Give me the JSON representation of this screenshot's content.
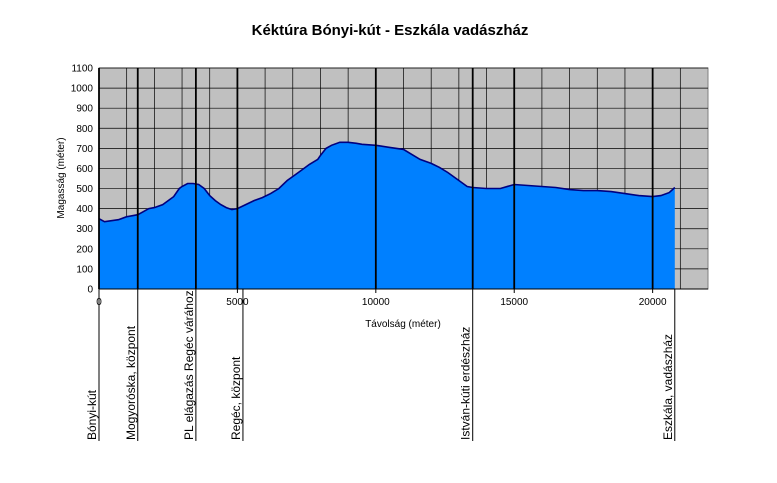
{
  "chart_data": {
    "type": "area",
    "title": "Kéktúra Bónyi-kút - Eszkála vadászház",
    "xlabel": "Távolság (méter)",
    "ylabel": "Magasság (méter)",
    "xlim": [
      0,
      22000
    ],
    "ylim": [
      0,
      1100
    ],
    "x_ticks": [
      "0",
      "5000",
      "10000",
      "15000",
      "20000"
    ],
    "x_tick_values": [
      0,
      5000,
      10000,
      15000,
      20000
    ],
    "y_ticks": [
      "0",
      "100",
      "200",
      "300",
      "400",
      "500",
      "600",
      "700",
      "800",
      "900",
      "1000",
      "1100"
    ],
    "y_tick_values": [
      0,
      100,
      200,
      300,
      400,
      500,
      600,
      700,
      800,
      900,
      1000,
      1100
    ],
    "grid": true,
    "colors": {
      "fill": "#0080ff",
      "line": "#000080",
      "plot_bg": "#c0c0c0",
      "grid": "#000000"
    },
    "series": [
      {
        "x": [
          0,
          200,
          700,
          1000,
          1400,
          1600,
          1800,
          2000,
          2300,
          2500,
          2700,
          2900,
          3000,
          3200,
          3400,
          3600,
          3800,
          4000,
          4200,
          4400,
          4600,
          4800,
          5000,
          5300,
          5600,
          5900,
          6200,
          6500,
          6800,
          7000,
          7300,
          7600,
          7900,
          8000,
          8200,
          8400,
          8700,
          9000,
          9300,
          9500,
          10000,
          10500,
          11000,
          11300,
          11600,
          12000,
          12300,
          12600,
          13000,
          13300,
          13500,
          14000,
          14500,
          15000,
          15500,
          16000,
          16500,
          17000,
          17500,
          18000,
          18500,
          19000,
          19500,
          20000,
          20300,
          20600,
          20800
        ],
        "values": [
          350,
          335,
          345,
          360,
          370,
          385,
          400,
          405,
          420,
          440,
          460,
          500,
          510,
          525,
          525,
          520,
          500,
          465,
          440,
          420,
          405,
          395,
          400,
          420,
          440,
          455,
          475,
          500,
          540,
          560,
          590,
          620,
          645,
          665,
          700,
          715,
          730,
          730,
          725,
          720,
          715,
          705,
          695,
          670,
          645,
          625,
          605,
          580,
          540,
          510,
          505,
          500,
          500,
          520,
          515,
          510,
          505,
          495,
          490,
          490,
          485,
          475,
          465,
          460,
          465,
          480,
          505
        ]
      }
    ],
    "vertical_markers": [
      0,
      1400,
      3500,
      5000,
      10000,
      13500,
      15000,
      20000
    ],
    "waypoints": [
      {
        "label": "Bónyi-kút",
        "x": 0
      },
      {
        "label": "Mogyoróska, központ",
        "x": 1400
      },
      {
        "label": "PL elágazás Regéc várához",
        "x": 3500
      },
      {
        "label": "Regéc, központ",
        "x": 5200
      },
      {
        "label": "István-kúti erdészház",
        "x": 13500
      },
      {
        "label": "Eszkála, vadászház",
        "x": 20800
      }
    ]
  }
}
